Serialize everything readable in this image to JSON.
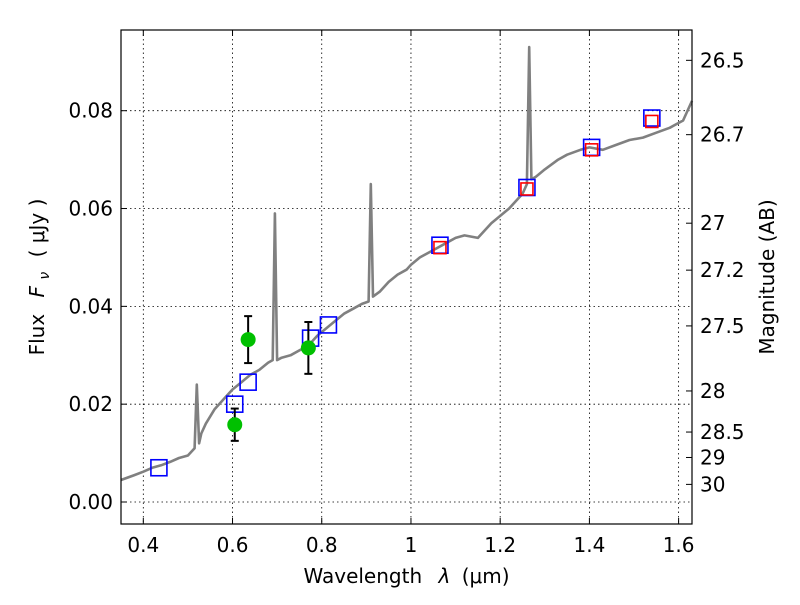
{
  "chart_data": {
    "type": "scatter",
    "xlabel_text": "Wavelength",
    "xlabel_symbol": "λ",
    "xlabel_unit": "(μm)",
    "ylabel_text": "Flux",
    "ylabel_symbol": "F",
    "ylabel_subscript": "ν",
    "ylabel_unit": "( μJy )",
    "ylabel_right": "Magnitude (AB)",
    "xlim": [
      0.35,
      1.63
    ],
    "ylim": [
      -0.0045,
      0.0965
    ],
    "grid": true,
    "x_ticks": [
      0.4,
      0.6,
      0.8,
      1.0,
      1.2,
      1.4,
      1.6
    ],
    "x_tick_labels": [
      "0.4",
      "0.6",
      "0.8",
      "1",
      "1.2",
      "1.4",
      "1.6"
    ],
    "y_ticks": [
      0.0,
      0.02,
      0.04,
      0.06,
      0.08
    ],
    "y_tick_labels": [
      "0.00",
      "0.02",
      "0.04",
      "0.06",
      "0.08"
    ],
    "right_ticks": [
      {
        "label": "26.5",
        "flux": 0.0903
      },
      {
        "label": "26.7",
        "flux": 0.0751
      },
      {
        "label": "27",
        "flux": 0.057
      },
      {
        "label": "27.2",
        "flux": 0.0474
      },
      {
        "label": "27.5",
        "flux": 0.036
      },
      {
        "label": "28",
        "flux": 0.0227
      },
      {
        "label": "28.5",
        "flux": 0.0143
      },
      {
        "label": "29",
        "flux": 0.0091
      },
      {
        "label": "30",
        "flux": 0.0036
      }
    ],
    "series": [
      {
        "kind": "line",
        "color": "#808080",
        "x": [
          0.35,
          0.38,
          0.4,
          0.42,
          0.44,
          0.46,
          0.48,
          0.5,
          0.515,
          0.52,
          0.525,
          0.53,
          0.54,
          0.56,
          0.58,
          0.6,
          0.62,
          0.64,
          0.66,
          0.68,
          0.69,
          0.695,
          0.7,
          0.71,
          0.73,
          0.75,
          0.77,
          0.79,
          0.81,
          0.83,
          0.85,
          0.87,
          0.89,
          0.905,
          0.91,
          0.915,
          0.93,
          0.95,
          0.97,
          0.99,
          1.0,
          1.02,
          1.05,
          1.08,
          1.1,
          1.12,
          1.15,
          1.18,
          1.2,
          1.22,
          1.24,
          1.25,
          1.26,
          1.265,
          1.27,
          1.28,
          1.3,
          1.33,
          1.35,
          1.38,
          1.4,
          1.43,
          1.46,
          1.49,
          1.52,
          1.55,
          1.58,
          1.61,
          1.63
        ],
        "y": [
          0.0045,
          0.0055,
          0.0062,
          0.007,
          0.0075,
          0.0082,
          0.009,
          0.0095,
          0.011,
          0.024,
          0.012,
          0.014,
          0.016,
          0.019,
          0.021,
          0.023,
          0.0245,
          0.026,
          0.027,
          0.0285,
          0.029,
          0.059,
          0.029,
          0.0295,
          0.03,
          0.031,
          0.032,
          0.034,
          0.0355,
          0.037,
          0.0385,
          0.0395,
          0.0405,
          0.041,
          0.065,
          0.042,
          0.043,
          0.045,
          0.0465,
          0.0475,
          0.0485,
          0.05,
          0.0515,
          0.053,
          0.054,
          0.0545,
          0.054,
          0.057,
          0.0585,
          0.06,
          0.062,
          0.063,
          0.065,
          0.093,
          0.066,
          0.0665,
          0.068,
          0.07,
          0.071,
          0.072,
          0.0725,
          0.072,
          0.073,
          0.074,
          0.0745,
          0.0755,
          0.0765,
          0.078,
          0.082
        ]
      },
      {
        "kind": "points",
        "marker": "open-square",
        "color": "#0000ff",
        "x": [
          0.435,
          0.605,
          0.635,
          0.775,
          0.815,
          1.065,
          1.26,
          1.405,
          1.54
        ],
        "y": [
          0.007,
          0.02,
          0.0245,
          0.0335,
          0.0362,
          0.0525,
          0.0643,
          0.0725,
          0.0785
        ]
      },
      {
        "kind": "points",
        "marker": "open-square",
        "color": "#ff0000",
        "x": [
          1.065,
          1.26,
          1.405,
          1.54
        ],
        "y": [
          0.052,
          0.064,
          0.072,
          0.0778
        ]
      },
      {
        "kind": "points",
        "marker": "filled-circle",
        "color": "#00c000",
        "x": [
          0.605,
          0.635,
          0.77
        ],
        "y": [
          0.0158,
          0.0332,
          0.0315
        ],
        "yerr": [
          0.0033,
          0.0048,
          0.0053
        ]
      }
    ]
  }
}
